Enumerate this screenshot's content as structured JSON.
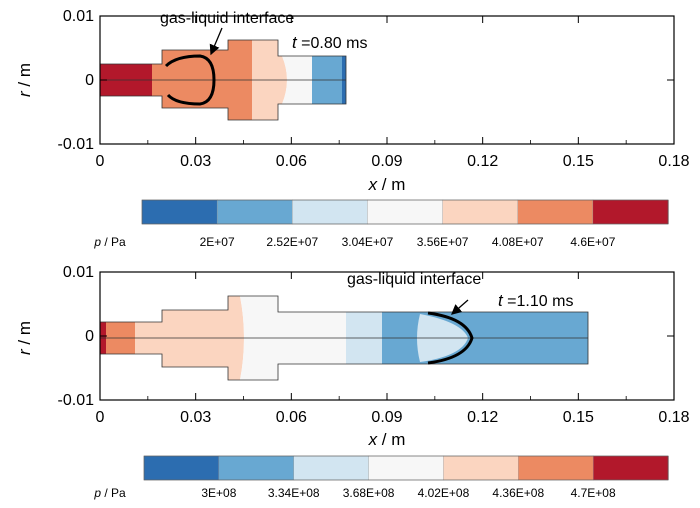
{
  "chart_data": [
    {
      "type": "heatmap",
      "xlabel_var": "x",
      "xlabel_unit": " / m",
      "ylabel_var": "r",
      "ylabel_unit": " / m",
      "xlim": [
        0,
        0.18
      ],
      "ylim": [
        -0.01,
        0.01
      ],
      "x_ticks": [
        "0",
        "0.03",
        "0.06",
        "0.09",
        "0.12",
        "0.15",
        "0.18"
      ],
      "y_ticks": [
        "0.01",
        "0",
        "-0.01"
      ],
      "time_var": "t",
      "time_value": " =0.80 ms",
      "annotation": "gas-liquid interface",
      "domain_extent_x": 0.0775,
      "colorbar": {
        "title_var": "p",
        "title_unit": " / Pa",
        "labels": [
          "2E+07",
          "2.52E+07",
          "3.04E+07",
          "3.56E+07",
          "4.08E+07",
          "4.6E+07"
        ],
        "colors": [
          "#2c6db0",
          "#68a8d2",
          "#d2e5f1",
          "#f7f7f7",
          "#fbd5c0",
          "#ec8a62",
          "#b2182b"
        ]
      }
    },
    {
      "type": "heatmap",
      "xlabel_var": "x",
      "xlabel_unit": " / m",
      "ylabel_var": "r",
      "ylabel_unit": " / m",
      "xlim": [
        0,
        0.18
      ],
      "ylim": [
        -0.01,
        0.01
      ],
      "x_ticks": [
        "0",
        "0.03",
        "0.06",
        "0.09",
        "0.12",
        "0.15",
        "0.18"
      ],
      "y_ticks": [
        "0.01",
        "0",
        "-0.01"
      ],
      "time_var": "t",
      "time_value": " =1.10 ms",
      "annotation": "gas-liquid interface",
      "domain_extent_x": 0.154,
      "colorbar": {
        "title_var": "p",
        "title_unit": " / Pa",
        "labels": [
          "3E+08",
          "3.34E+08",
          "3.68E+08",
          "4.02E+08",
          "4.36E+08",
          "4.7E+08"
        ],
        "colors": [
          "#2c6db0",
          "#68a8d2",
          "#d2e5f1",
          "#f7f7f7",
          "#fbd5c0",
          "#ec8a62",
          "#b2182b"
        ]
      }
    }
  ]
}
